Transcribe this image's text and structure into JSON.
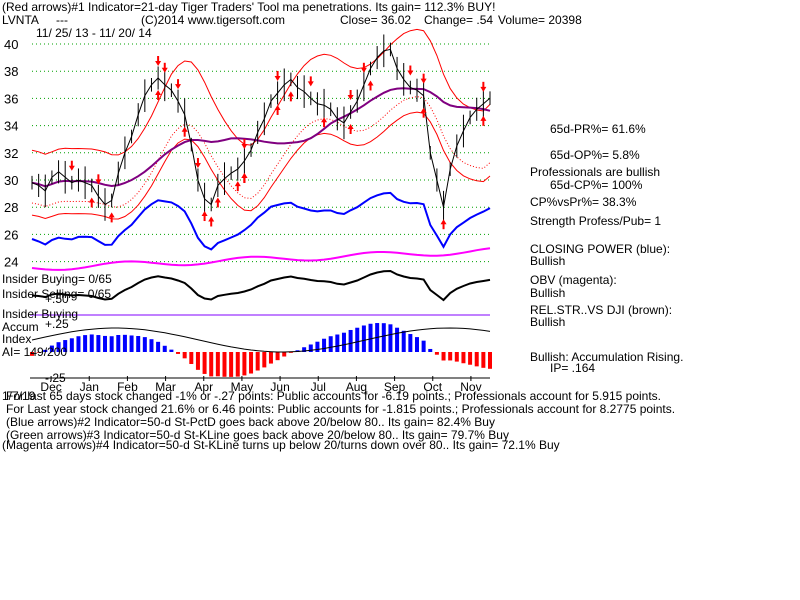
{
  "header": {
    "line1": "(Red arrows)#1 Indicator=21-day Tiger Traders' Tool ma penetrations. Its gain= 112.3% BUY!",
    "ticker": "LVNTA",
    "dashes": "---",
    "copyright": "(C)2014 www.tigersoft.com",
    "close": "Close= 36.02",
    "change": "Change= .54",
    "volume": "Volume= 20398",
    "date_range": "11/ 25/ 13 - 11/ 20/ 14"
  },
  "right_panel": {
    "pr": "65d-PR%= 61.6%",
    "op": "65d-OP%= 5.8%",
    "professionals": "Professionals are bullish",
    "cp": "65d-CP%= 100%",
    "cpvspr": "CP%vsPr%= 38.3%",
    "strength": "Strength Profess/Pub= 1",
    "closing_power_label": "CLOSING POWER (blue):",
    "closing_power_value": "Bullish",
    "obv_label": "OBV (magenta):",
    "obv_value": "Bullish",
    "relstr_label": "REL.STR..VS DJI (brown):",
    "relstr_value": "Bullish",
    "accum_label": "Bullish: Accumulation Rising.",
    "ip": "IP= .164"
  },
  "left_labels": {
    "insider_buying_top": "Insider Buying= 0/65",
    "insider_selling": "Insider Selling= 0/65",
    "insider_buying_mid": "Insider Buying",
    "accum": "Accum",
    "index": "Index",
    "ai": "AI= 149/200",
    "p50": "+.50",
    "p25": "+.25",
    "m25": "-.25"
  },
  "footer": {
    "line1": "For last 65 days stock changed -1% or -.27 points: Public accounts for -6.19 points.; Professionals account for 5.915 points.",
    "overlap": "1/7/19",
    "line2": "For Last year stock changed 21.6% or 6.46 points: Public accounts for -1.815 points.; Professionals account for 8.2775 points.",
    "line3": "(Blue arrows)#2 Indicator=50-d St-PctD goes back above 20/below 80.. Its gain= 82.4% Buy",
    "line4": "(Green arrows)#3 Indicator=50-d St-KLine goes back above 20/below 80.. Its gain= 79.7% Buy",
    "line5": "(Magenta arrows)#4 Indicator=50-d St-KLine turns up below 20/turns down over 80.. Its gain= 72.1% Buy"
  },
  "colors": {
    "price": "#000000",
    "band": "#ff0000",
    "ma50": "#800080",
    "closing_power": "#0000ff",
    "obv": "#ff00ff",
    "accum_pos": "#0000ff",
    "accum_neg": "#ff0000",
    "purple_line": "#8000ff",
    "grid": "#00a000"
  },
  "chart_data": {
    "type": "line",
    "title": "",
    "xlabel": "",
    "ylabel": "",
    "ylim": [
      24,
      40
    ],
    "yticks": [
      24,
      26,
      28,
      30,
      32,
      34,
      36,
      38,
      40
    ],
    "months": [
      "Dec",
      "Jan",
      "Feb",
      "Mar",
      "Apr",
      "May",
      "Jun",
      "Jul",
      "Aug",
      "Sep",
      "Oct",
      "Nov"
    ],
    "series": [
      {
        "values": [
          29.8,
          29.6,
          29.2,
          30.2,
          30.6,
          30.2,
          29.8,
          30.0,
          29.8,
          29.6,
          28.8,
          28.2,
          28.5,
          30.5,
          32.0,
          33.2,
          34.8,
          36.2,
          37.0,
          37.5,
          37.0,
          36.6,
          35.8,
          34.8,
          32.6,
          30.0,
          28.6,
          28.2,
          29.6,
          30.1,
          30.5,
          30.8,
          31.4,
          32.2,
          33.5,
          34.5,
          35.8,
          36.4,
          37.0,
          37.4,
          36.8,
          36.5,
          36.0,
          35.6,
          35.5,
          35.2,
          34.5,
          34.2,
          35.0,
          35.8,
          37.0,
          38.2,
          39.0,
          39.5,
          39.6,
          38.2,
          37.4,
          36.8,
          36.6,
          36.2,
          32.0,
          30.0,
          28.0,
          30.8,
          32.5,
          33.6,
          34.6,
          35.2,
          35.6,
          36.02
        ]
      }
    ],
    "arrows": {
      "red_down": [
        0.08,
        0.15,
        0.27,
        0.29,
        0.32,
        0.36,
        0.47,
        0.54,
        0.61,
        0.7,
        0.73,
        0.82,
        0.85,
        0.98
      ],
      "red_up": [
        0.13,
        0.17,
        0.28,
        0.33,
        0.4,
        0.47,
        0.53,
        0.57,
        0.64,
        0.7,
        0.74,
        0.86,
        0.9,
        0.99
      ],
      "red_up_strong": [
        0.38,
        0.39,
        0.45,
        0.46,
        0.47
      ]
    }
  }
}
